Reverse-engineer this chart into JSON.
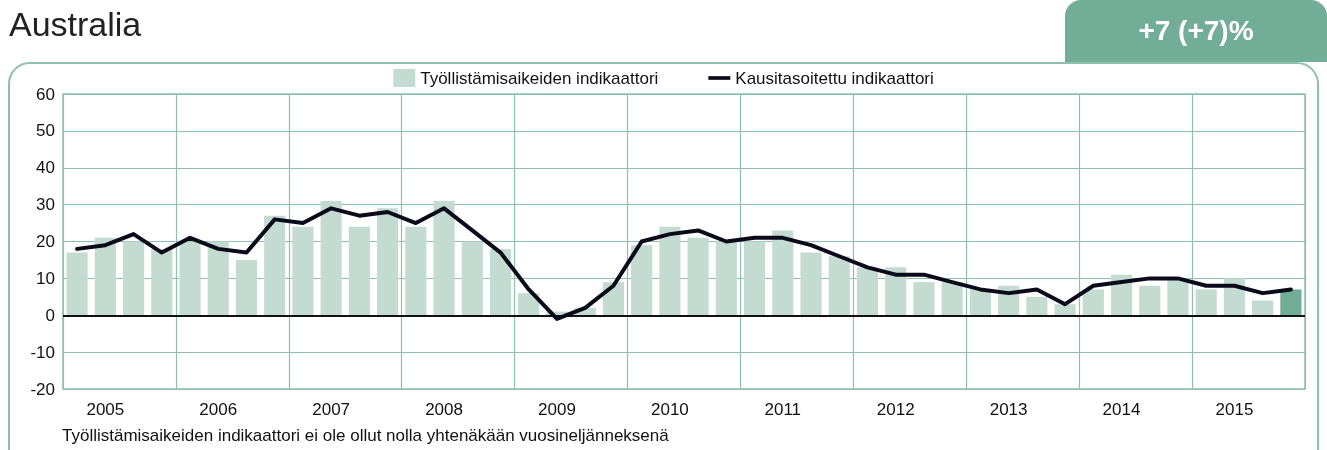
{
  "chart_data": {
    "type": "bar",
    "title": "Australia",
    "subtitle": "+7 (+7)%",
    "categories": [
      null,
      "2005",
      null,
      null,
      null,
      "2006",
      null,
      null,
      null,
      "2007",
      null,
      null,
      null,
      "2008",
      null,
      null,
      null,
      "2009",
      null,
      null,
      null,
      "2010",
      null,
      null,
      null,
      "2011",
      null,
      null,
      null,
      "2012",
      null,
      null,
      null,
      "2013",
      null,
      null,
      null,
      "2014",
      null,
      null,
      null,
      "2015",
      null,
      null
    ],
    "series": [
      {
        "name": "Työllistämisaikeiden indikaattori",
        "color": "#c4dbd2",
        "colors": [
          "#c4dbd2",
          "#c4dbd2",
          "#c4dbd2",
          "#c4dbd2",
          "#c4dbd2",
          "#c4dbd2",
          "#c4dbd2",
          "#c4dbd2",
          "#c4dbd2",
          "#c4dbd2",
          "#c4dbd2",
          "#c4dbd2",
          "#c4dbd2",
          "#c4dbd2",
          "#c4dbd2",
          "#c4dbd2",
          "#c4dbd2",
          "#c4dbd2",
          "#c4dbd2",
          "#c4dbd2",
          "#c4dbd2",
          "#c4dbd2",
          "#c4dbd2",
          "#c4dbd2",
          "#c4dbd2",
          "#c4dbd2",
          "#c4dbd2",
          "#c4dbd2",
          "#c4dbd2",
          "#c4dbd2",
          "#c4dbd2",
          "#c4dbd2",
          "#c4dbd2",
          "#c4dbd2",
          "#c4dbd2",
          "#c4dbd2",
          "#c4dbd2",
          "#c4dbd2",
          "#c4dbd2",
          "#c4dbd2",
          "#c4dbd2",
          "#c4dbd2",
          "#c4dbd2",
          "#72ad98"
        ],
        "values": [
          17,
          21,
          20,
          18,
          20,
          20,
          15,
          27,
          24,
          31,
          24,
          29,
          24,
          31,
          20,
          18,
          6,
          1,
          2,
          9,
          19,
          24,
          21,
          20,
          20,
          23,
          17,
          16,
          13,
          13,
          9,
          9,
          7,
          8,
          5,
          3,
          7,
          11,
          8,
          10,
          7,
          10,
          4,
          7
        ]
      },
      {
        "name": "Kausitasoitettu indikaattori",
        "type": "line",
        "color": "#0a0a1a",
        "values": [
          18,
          19,
          22,
          17,
          21,
          18,
          17,
          26,
          25,
          29,
          27,
          28,
          25,
          29,
          23,
          17,
          7,
          -1,
          2,
          8,
          20,
          22,
          23,
          20,
          21,
          21,
          19,
          16,
          13,
          11,
          11,
          9,
          7,
          6,
          7,
          3,
          8,
          9,
          10,
          10,
          8,
          8,
          6,
          7
        ]
      }
    ],
    "ylim": [
      -20,
      60
    ],
    "yticks": [
      -20,
      -10,
      0,
      10,
      20,
      30,
      40,
      50,
      60
    ],
    "grid": true,
    "legend": "top",
    "marker": "none",
    "line_style": "solid",
    "annotations": [
      "Työllistämisaikeiden indikaattori ei ole ollut nolla yhtenäkään vuosineljänneksenä"
    ]
  }
}
